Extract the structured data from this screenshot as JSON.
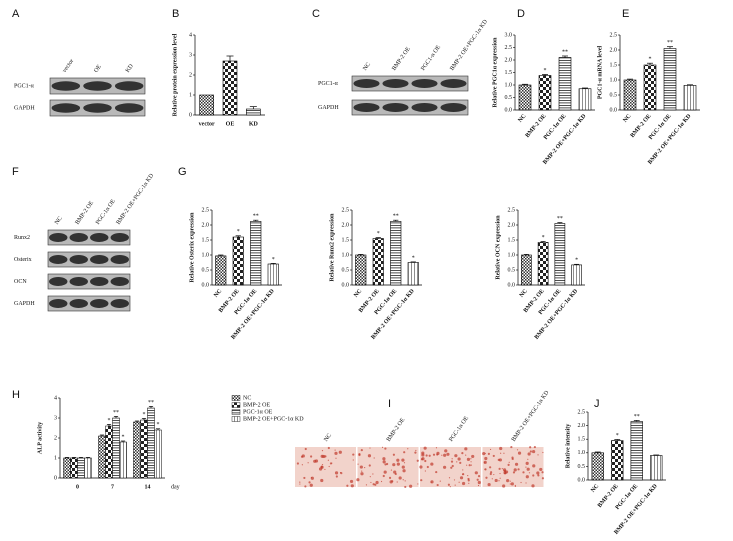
{
  "panel_labels": [
    "A",
    "B",
    "C",
    "D",
    "E",
    "F",
    "G",
    "H",
    "I",
    "J"
  ],
  "blots": [
    {
      "columns": [
        "vector",
        "OE",
        "KD"
      ],
      "rows": [
        "PGC1-α",
        "GAPDH"
      ]
    },
    {
      "columns": [
        "NC",
        "BMP-2 OE",
        "PGC1-α OE",
        "BMP-2 OE+PGC-1α KD"
      ],
      "rows": [
        "PGC1-α",
        "GAPDH"
      ]
    },
    {
      "columns": [
        "NC",
        "BMP-2 OE",
        "PGC-1α OE",
        "BMP-2 OE+PGC-1α KD"
      ],
      "rows": [
        "Runx2",
        "Osterix",
        "OCN",
        "GAPDH"
      ]
    }
  ],
  "stain_images": {
    "labels": [
      "NC",
      "BMP-2 OE",
      "PGC-1α OE",
      "BMP-2 OE+PGC-1α KD"
    ]
  },
  "chart_data": [
    {
      "type": "bar",
      "y_label": "Relative protein expression level",
      "categories": [
        "vector",
        "OE",
        "KD"
      ],
      "values": [
        1,
        2.7,
        0.3
      ],
      "errors": [
        null,
        0.25,
        0.12
      ],
      "ylim": [
        0,
        4
      ],
      "yticks": [
        0,
        1,
        2,
        3,
        4
      ]
    },
    {
      "type": "bar",
      "y_label": "Relative PGC1α expression",
      "categories": [
        "NC",
        "BMP-2 OE",
        "PGC-1α OE",
        "BMP-2 OE+PGC-1α KD"
      ],
      "values": [
        1,
        1.38,
        2.1,
        0.85
      ],
      "errors": [
        0.03,
        0.04,
        0.06,
        0.03
      ],
      "marks": [
        null,
        "*",
        "**",
        null
      ],
      "ylim": [
        0,
        3
      ],
      "yticks": [
        {
          "value": 0,
          "label": "0.0"
        },
        {
          "value": 0.5,
          "label": "0.5"
        },
        {
          "value": 1,
          "label": "1.0"
        },
        {
          "value": 1.5,
          "label": "1.5"
        },
        {
          "value": 2,
          "label": "2.0"
        },
        {
          "value": 2.5,
          "label": "2.5"
        },
        {
          "value": 3,
          "label": "3.0"
        }
      ]
    },
    {
      "type": "bar",
      "y_label": "PGC1-α mRNA level",
      "categories": [
        "NC",
        "BMP-2 OE",
        "PGC-1α OE",
        "BMP-2 OE+PGC-1α KD"
      ],
      "values": [
        1,
        1.5,
        2.05,
        0.82
      ],
      "errors": [
        0.03,
        0.06,
        0.06,
        0.02
      ],
      "marks": [
        null,
        "*",
        "**",
        null
      ],
      "ylim": [
        0,
        2.5
      ],
      "yticks": [
        {
          "value": 0,
          "label": "0.0"
        },
        {
          "value": 0.5,
          "label": "0.5"
        },
        {
          "value": 1,
          "label": "1.0"
        },
        {
          "value": 1.5,
          "label": "1.5"
        },
        {
          "value": 2,
          "label": "2.0"
        },
        {
          "value": 2.5,
          "label": "2.5"
        }
      ]
    },
    {
      "type": "bar",
      "y_label": "Relative Osterix expression",
      "categories": [
        "NC",
        "BMP-2 OE",
        "PGC-1α OE",
        "BMP-2 OE+PGC-1α KD"
      ],
      "values": [
        0.97,
        1.6,
        2.12,
        0.7
      ],
      "errors": [
        0.03,
        0.04,
        0.04,
        0.02
      ],
      "marks": [
        null,
        "*",
        "**",
        "*"
      ],
      "ylim": [
        0,
        2.5
      ],
      "yticks": [
        {
          "value": 0,
          "label": "0.0"
        },
        {
          "value": 0.5,
          "label": "0.5"
        },
        {
          "value": 1,
          "label": "1.0"
        },
        {
          "value": 1.5,
          "label": "1.5"
        },
        {
          "value": 2,
          "label": "2.0"
        },
        {
          "value": 2.5,
          "label": "2.5"
        }
      ]
    },
    {
      "type": "bar",
      "y_label": "Relative Runx2 expression",
      "categories": [
        "NC",
        "BMP-2 OE",
        "PGC-1α OE",
        "BMP-2 OE+PGC-1α KD"
      ],
      "values": [
        1,
        1.55,
        2.12,
        0.75
      ],
      "errors": [
        0.02,
        0.03,
        0.04,
        0.02
      ],
      "marks": [
        null,
        "*",
        "**",
        "*"
      ],
      "ylim": [
        0,
        2.5
      ],
      "yticks": [
        {
          "value": 0,
          "label": "0.0"
        },
        {
          "value": 0.5,
          "label": "0.5"
        },
        {
          "value": 1,
          "label": "1.0"
        },
        {
          "value": 1.5,
          "label": "1.5"
        },
        {
          "value": 2,
          "label": "2.0"
        },
        {
          "value": 2.5,
          "label": "2.5"
        }
      ]
    },
    {
      "type": "bar",
      "y_label": "Relative OCN expression",
      "categories": [
        "NC",
        "BMP-2 OE",
        "PGC-1α OE",
        "BMP-2 OE+PGC-1α KD"
      ],
      "values": [
        1,
        1.42,
        2.05,
        0.67
      ],
      "errors": [
        0.02,
        0.03,
        0.03,
        0.02
      ],
      "marks": [
        null,
        "*",
        "**",
        "*"
      ],
      "ylim": [
        0,
        2.5
      ],
      "yticks": [
        {
          "value": 0,
          "label": "0.0"
        },
        {
          "value": 0.5,
          "label": "0.5"
        },
        {
          "value": 1,
          "label": "1.0"
        },
        {
          "value": 1.5,
          "label": "1.5"
        },
        {
          "value": 2,
          "label": "2.0"
        },
        {
          "value": 2.5,
          "label": "2.5"
        }
      ]
    },
    {
      "type": "grouped_bar",
      "y_label": "ALP activity",
      "x_label": "day",
      "categories": [
        "0",
        "7",
        "14"
      ],
      "series": [
        {
          "name": "NC",
          "values": [
            1,
            2.1,
            2.8
          ],
          "errors": [
            0.03,
            0.05,
            0.05
          ],
          "marks": [
            null,
            null,
            null
          ]
        },
        {
          "name": "BMP-2 OE",
          "values": [
            1,
            2.6,
            2.9
          ],
          "errors": [
            0.03,
            0.08,
            0.08
          ],
          "marks": [
            null,
            "*",
            "*"
          ]
        },
        {
          "name": "PGC-1α OE",
          "values": [
            1,
            3.0,
            3.5
          ],
          "errors": [
            0.03,
            0.08,
            0.08
          ],
          "marks": [
            null,
            "**",
            "**"
          ]
        },
        {
          "name": "BMP-2 OE+PGC-1α KD",
          "values": [
            1,
            1.8,
            2.4
          ],
          "errors": [
            0.03,
            0.05,
            0.06
          ],
          "marks": [
            null,
            "*",
            "*"
          ]
        }
      ],
      "ylim": [
        0,
        4
      ],
      "yticks": [
        0,
        1,
        2,
        3,
        4
      ]
    },
    {
      "type": "bar",
      "y_label": "Relative intensity",
      "categories": [
        "NC",
        "BMP-2 OE",
        "PGC-1α OE",
        "BMP-2 OE+PGC-1α KD"
      ],
      "values": [
        1,
        1.45,
        2.15,
        0.9
      ],
      "errors": [
        0.03,
        0.04,
        0.04,
        0.02
      ],
      "marks": [
        null,
        "*",
        "**",
        null
      ],
      "ylim": [
        0,
        2.5
      ],
      "yticks": [
        {
          "value": 0,
          "label": "0.0"
        },
        {
          "value": 0.5,
          "label": "0.5"
        },
        {
          "value": 1,
          "label": "1.0"
        },
        {
          "value": 1.5,
          "label": "1.5"
        },
        {
          "value": 2,
          "label": "2.0"
        },
        {
          "value": 2.5,
          "label": "2.5"
        }
      ]
    }
  ]
}
